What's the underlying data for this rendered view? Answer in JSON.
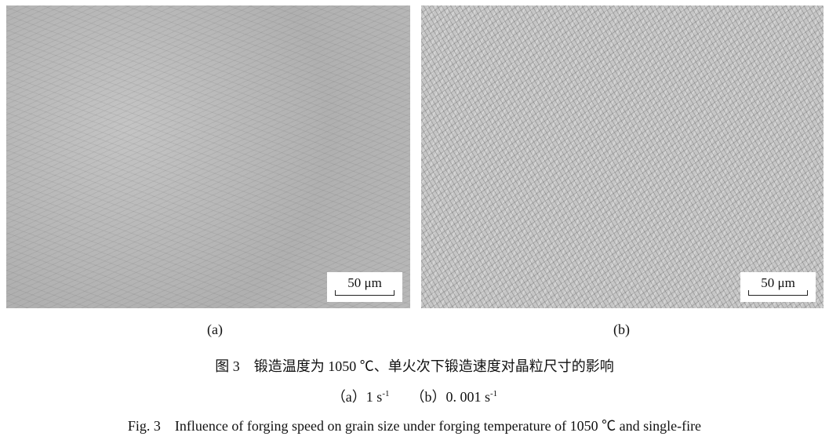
{
  "panels": [
    {
      "label": "(a)",
      "scale_bar": "50 μm"
    },
    {
      "label": "(b)",
      "scale_bar": "50 μm"
    }
  ],
  "caption": {
    "zh": "图 3　锻造温度为 1050 ℃、单火次下锻造速度对晶粒尺寸的影响",
    "sub_a": "（a）1 s",
    "sub_b": "（b）0. 001 s",
    "exp": "-1",
    "en": "Fig. 3　Influence of forging speed on grain size under forging temperature of 1050 ℃ and single-fire"
  }
}
